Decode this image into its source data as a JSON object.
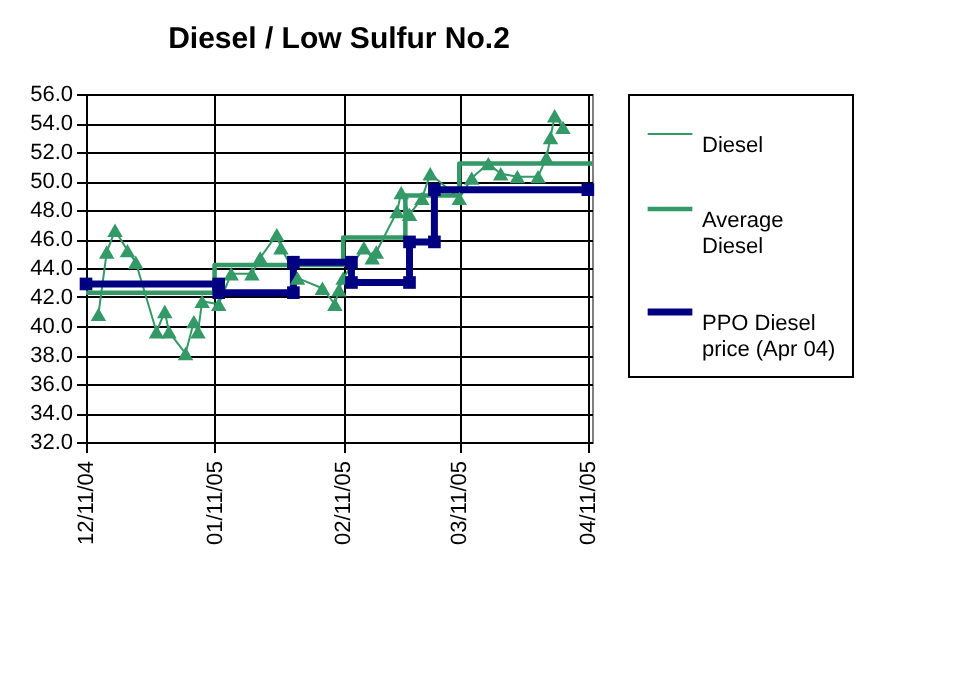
{
  "chart_data": {
    "type": "line",
    "title": "Diesel / Low Sulfur No.2",
    "xlim": [
      "2004-12-11",
      "2005-04-12"
    ],
    "xticks": [
      {
        "value": "2004-12-11",
        "label": "12/11/04"
      },
      {
        "value": "2005-01-11",
        "label": "01/11/05"
      },
      {
        "value": "2005-02-11",
        "label": "02/11/05"
      },
      {
        "value": "2005-03-11",
        "label": "03/11/05"
      },
      {
        "value": "2005-04-11",
        "label": "04/11/05"
      }
    ],
    "ylim": [
      32,
      56
    ],
    "yticks": [
      {
        "value": 32,
        "label": "32.0"
      },
      {
        "value": 34,
        "label": "34.0"
      },
      {
        "value": 36,
        "label": "36.0"
      },
      {
        "value": 38,
        "label": "38.0"
      },
      {
        "value": 40,
        "label": "40.0"
      },
      {
        "value": 42,
        "label": "42.0"
      },
      {
        "value": 44,
        "label": "44.0"
      },
      {
        "value": 46,
        "label": "46.0"
      },
      {
        "value": 48,
        "label": "48.0"
      },
      {
        "value": 50,
        "label": "50.0"
      },
      {
        "value": 52,
        "label": "52.0"
      },
      {
        "value": 54,
        "label": "54.0"
      },
      {
        "value": 56,
        "label": "56.0"
      }
    ],
    "grid": true,
    "legend": "right",
    "series": [
      {
        "name": "Diesel",
        "color": "#339966",
        "marker": "triangle",
        "x": [
          "2004-12-14",
          "2004-12-16",
          "2004-12-18",
          "2004-12-21",
          "2004-12-23",
          "2004-12-28",
          "2004-12-30",
          "2004-12-31",
          "2005-01-04",
          "2005-01-06",
          "2005-01-07",
          "2005-01-08",
          "2005-01-12",
          "2005-01-15",
          "2005-01-20",
          "2005-01-22",
          "2005-01-26",
          "2005-01-27",
          "2005-01-31",
          "2005-02-06",
          "2005-02-09",
          "2005-02-10",
          "2005-02-11",
          "2005-02-16",
          "2005-02-18",
          "2005-02-19",
          "2005-02-24",
          "2005-02-25",
          "2005-02-27",
          "2005-03-02",
          "2005-03-04",
          "2005-03-11",
          "2005-03-14",
          "2005-03-18",
          "2005-03-21",
          "2005-03-25",
          "2005-03-30",
          "2005-04-01",
          "2005-04-02",
          "2005-04-03",
          "2005-04-05"
        ],
        "values": [
          40.8,
          45.1,
          46.6,
          45.2,
          44.4,
          39.6,
          41.0,
          39.6,
          38.1,
          40.3,
          39.6,
          41.7,
          41.5,
          43.6,
          43.6,
          44.7,
          46.3,
          45.4,
          43.3,
          42.6,
          41.5,
          42.5,
          43.3,
          45.4,
          44.7,
          45.1,
          47.9,
          49.2,
          47.7,
          48.8,
          50.5,
          48.8,
          50.2,
          51.2,
          50.5,
          50.3,
          50.3,
          51.6,
          53.0,
          54.5,
          53.7
        ]
      },
      {
        "name": "Average Diesel",
        "color": "#339966",
        "marker": "none",
        "x": [
          "2004-12-11",
          "2005-01-11",
          "2005-01-11",
          "2005-02-11",
          "2005-02-11",
          "2005-02-26",
          "2005-02-26",
          "2005-03-11",
          "2005-03-11",
          "2005-04-12"
        ],
        "values": [
          42.3,
          42.3,
          44.2,
          44.2,
          46.1,
          46.1,
          49.0,
          49.0,
          51.2,
          51.2
        ]
      },
      {
        "name": "PPO Diesel price (Apr 04)",
        "color": "#000080",
        "marker": "square",
        "x": [
          "2004-12-11",
          "2005-01-12",
          "2005-01-12",
          "2005-01-30",
          "2005-01-30",
          "2005-02-13",
          "2005-02-13",
          "2005-02-27",
          "2005-02-27",
          "2005-03-05",
          "2005-03-05",
          "2005-04-11"
        ],
        "values": [
          42.9,
          42.9,
          42.3,
          42.3,
          44.4,
          44.4,
          43.0,
          43.0,
          45.8,
          45.8,
          49.4,
          49.4
        ]
      }
    ]
  }
}
